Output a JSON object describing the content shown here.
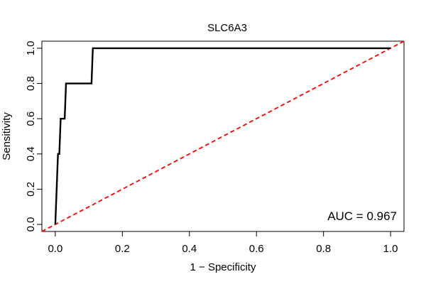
{
  "chart_data": {
    "type": "line",
    "title": "SLC6A3",
    "xlabel": "1 − Specificity",
    "ylabel": "Sensitivity",
    "xlim": [
      -0.04,
      1.04
    ],
    "ylim": [
      -0.04,
      1.04
    ],
    "x_ticks": [
      "0.0",
      "0.2",
      "0.4",
      "0.6",
      "0.8",
      "1.0"
    ],
    "y_ticks": [
      "0.0",
      "0.2",
      "0.4",
      "0.6",
      "0.8",
      "1.0"
    ],
    "grid": false,
    "annotation": "AUC = 0.967",
    "roc_curve": {
      "color": "#000000",
      "x": [
        0.0,
        0.008,
        0.012,
        0.016,
        0.028,
        0.032,
        0.108,
        0.112,
        1.0
      ],
      "y": [
        0.0,
        0.4,
        0.4,
        0.6,
        0.6,
        0.8,
        0.8,
        1.0,
        1.0
      ]
    },
    "reference_line": {
      "color": "#ff0000",
      "style": "dashed",
      "x": [
        -0.04,
        1.04
      ],
      "y": [
        -0.04,
        1.04
      ]
    }
  }
}
